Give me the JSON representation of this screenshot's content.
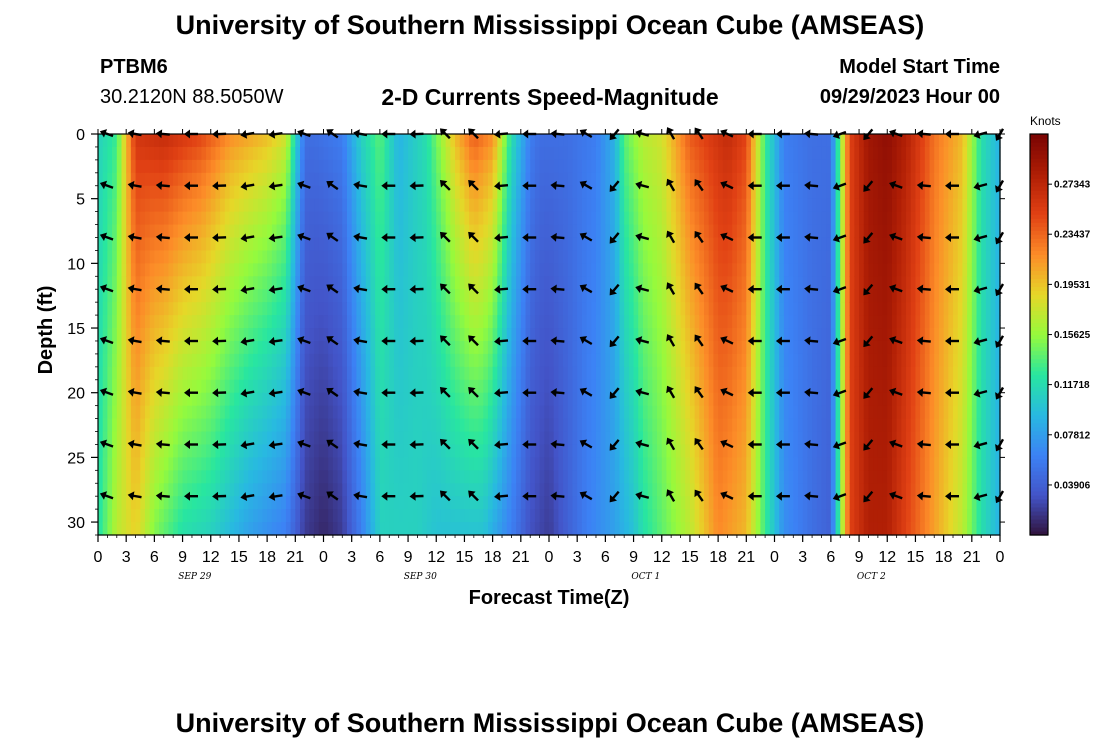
{
  "header": {
    "title": "University of Southern Mississippi Ocean Cube (AMSEAS)",
    "station_id": "PTBM6",
    "station_coords": "30.2120N  88.5050W",
    "subtitle": "2-D Currents Speed-Magnitude",
    "model_start_label": "Model Start Time",
    "model_start_value": "09/29/2023 Hour 00"
  },
  "footer": {
    "title": "University of Southern Mississippi Ocean Cube (AMSEAS)"
  },
  "chart_data": {
    "type": "heatmap",
    "title": "2-D Currents Speed-Magnitude",
    "xlabel": "Forecast Time(Z)",
    "ylabel": "Depth (ft)",
    "x_ticks": [
      "0",
      "3",
      "6",
      "9",
      "12",
      "15",
      "18",
      "21",
      "0",
      "3",
      "6",
      "9",
      "12",
      "15",
      "18",
      "21",
      "0",
      "3",
      "6",
      "9",
      "12",
      "15",
      "18",
      "21",
      "0",
      "3",
      "6",
      "9",
      "12",
      "15",
      "18",
      "21",
      "0"
    ],
    "x_hours_range": [
      0,
      96
    ],
    "date_labels": [
      {
        "label": "SEP 29",
        "hour": 12
      },
      {
        "label": "SEP 30",
        "hour": 36
      },
      {
        "label": "OCT 1",
        "hour": 60
      },
      {
        "label": "OCT 2",
        "hour": 84
      }
    ],
    "y_ticks": [
      0,
      5,
      10,
      15,
      20,
      25,
      30
    ],
    "ylim": [
      0,
      31
    ],
    "y_inverted": true,
    "colorbar": {
      "unit": "Knots",
      "min": 0.0,
      "max": 0.3125,
      "tick_values": [
        0.039,
        0.0781,
        0.1172,
        0.1562,
        0.1953,
        0.2344,
        0.2734
      ],
      "tick_labels": [
        "0.03906",
        "0.07812",
        "0.11718",
        "0.15625",
        "0.19531",
        "0.23437",
        "0.27343"
      ]
    },
    "speed_profile_surface": {
      "hours": [
        0,
        2,
        3,
        4,
        7,
        11,
        14,
        18,
        20,
        22,
        23,
        26,
        28,
        30,
        32,
        35,
        38,
        40,
        42,
        44,
        46,
        47,
        50,
        53,
        55,
        56,
        58,
        60,
        63,
        67,
        69,
        71,
        73,
        76,
        78,
        80,
        82,
        84,
        86,
        89,
        92,
        94,
        96
      ],
      "knots": [
        0.11,
        0.13,
        0.2,
        0.26,
        0.27,
        0.25,
        0.22,
        0.2,
        0.18,
        0.05,
        0.05,
        0.06,
        0.11,
        0.14,
        0.09,
        0.12,
        0.2,
        0.24,
        0.22,
        0.12,
        0.06,
        0.05,
        0.05,
        0.06,
        0.09,
        0.14,
        0.17,
        0.18,
        0.24,
        0.27,
        0.25,
        0.13,
        0.06,
        0.05,
        0.05,
        0.25,
        0.29,
        0.3,
        0.28,
        0.23,
        0.2,
        0.12,
        0.09
      ]
    },
    "speed_profile_bottom": {
      "hours": [
        0,
        2,
        4,
        6,
        9,
        12,
        16,
        18,
        20,
        22,
        24,
        26,
        28,
        30,
        32,
        34,
        36,
        38,
        41,
        44,
        46,
        48,
        50,
        52,
        55,
        57,
        58,
        60,
        63,
        66,
        69,
        71,
        73,
        76,
        78,
        80,
        82,
        84,
        86,
        89,
        92,
        94,
        96
      ],
      "knots": [
        0.12,
        0.17,
        0.19,
        0.15,
        0.12,
        0.11,
        0.08,
        0.07,
        0.06,
        0.02,
        0.01,
        0.02,
        0.06,
        0.11,
        0.11,
        0.11,
        0.1,
        0.1,
        0.1,
        0.06,
        0.03,
        0.02,
        0.04,
        0.06,
        0.08,
        0.1,
        0.12,
        0.14,
        0.17,
        0.22,
        0.2,
        0.13,
        0.07,
        0.05,
        0.04,
        0.25,
        0.28,
        0.28,
        0.25,
        0.21,
        0.17,
        0.12,
        0.09
      ]
    },
    "vectors": {
      "hours": [
        1,
        4,
        7,
        10,
        13,
        16,
        19,
        22,
        25,
        28,
        31,
        34,
        37,
        40,
        43,
        46,
        49,
        52,
        55,
        58,
        61,
        64,
        67,
        70,
        73,
        76,
        79,
        82,
        85,
        88,
        91,
        94,
        96
      ],
      "depths_ft": [
        0,
        4,
        8,
        12,
        16,
        20,
        24,
        28
      ],
      "direction_deg": [
        200,
        190,
        185,
        180,
        178,
        170,
        172,
        200,
        215,
        190,
        180,
        178,
        225,
        225,
        175,
        180,
        185,
        210,
        130,
        195,
        240,
        235,
        205,
        180,
        180,
        185,
        160,
        130,
        200,
        185,
        180,
        165,
        120
      ]
    }
  }
}
